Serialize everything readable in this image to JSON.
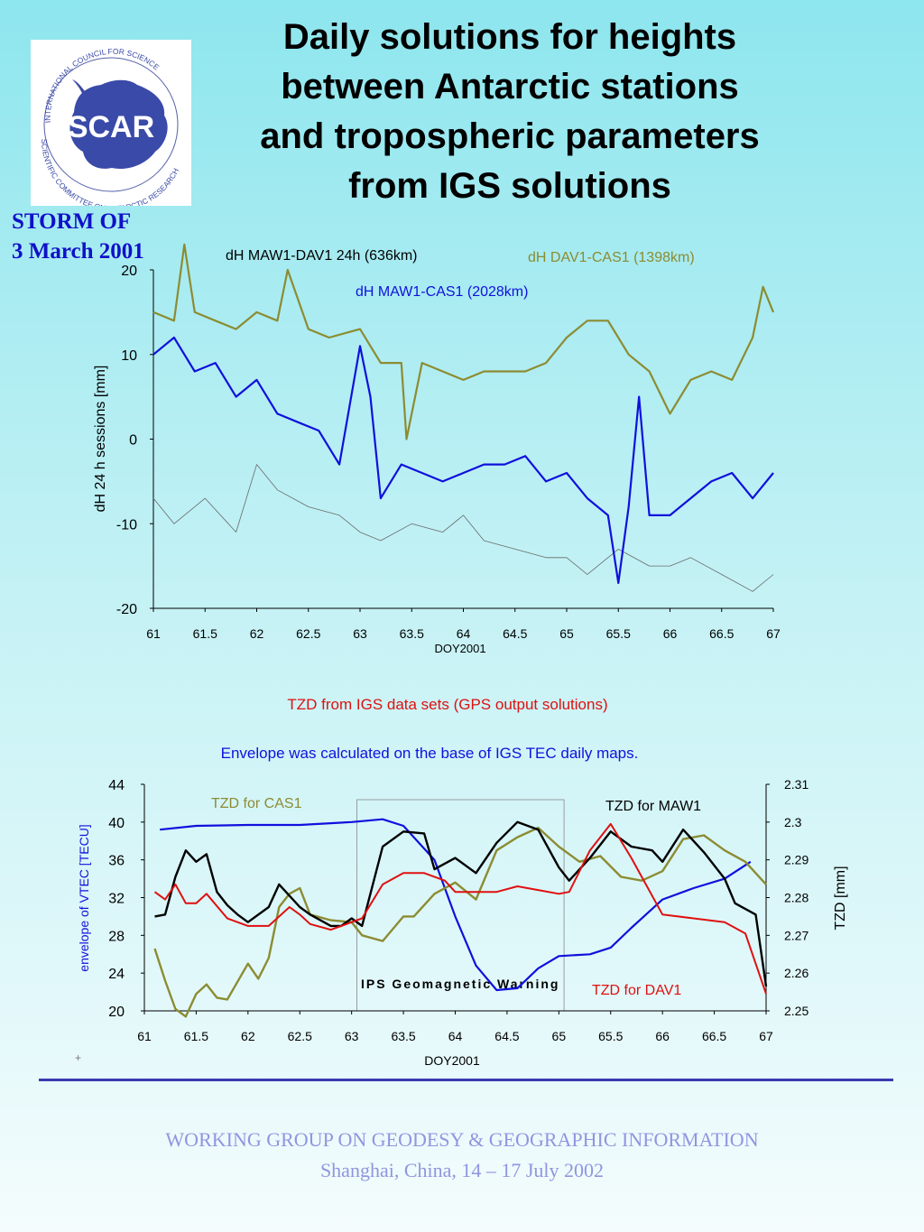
{
  "title_lines": [
    "Daily solutions for heights",
    "between Antarctic stations",
    "and tropospheric parameters",
    "from IGS solutions"
  ],
  "logo": {
    "name": "scar-logo-icon",
    "center_text": "SCAR",
    "ring_top": "INTERNATIONAL COUNCIL FOR SCIENCE",
    "ring_bottom": "SCIENTIFIC COMMITTEE ON ANTARCTIC RESEARCH"
  },
  "storm_lines": [
    "STORM  OF",
    "3 March 2001"
  ],
  "colors": {
    "maw_dav": "#6a6a6a",
    "maw_cas": "#1010dd",
    "dav_cas": "#8c8c32",
    "tzd_maw": "#000000",
    "tzd_dav": "#e01010",
    "envelope": "#1010dd",
    "red_text": "#e01010"
  },
  "chart_data": [
    {
      "type": "line",
      "title": "",
      "xlabel": "DOY2001",
      "ylabel": "dH 24 h sessions [mm]",
      "xlim": [
        61,
        67
      ],
      "ylim": [
        -20,
        20
      ],
      "xticks": [
        "61",
        "61.5",
        "62",
        "62.5",
        "63",
        "63.5",
        "64",
        "64.5",
        "65",
        "65.5",
        "66",
        "66.5",
        "67"
      ],
      "yticks": [
        "20",
        "10",
        "0",
        "-10",
        "-20"
      ],
      "series": [
        {
          "name": "dH MAW1-DAV1 24h (636km)",
          "x": [
            61.0,
            61.2,
            61.5,
            61.8,
            62.0,
            62.2,
            62.5,
            62.8,
            63.0,
            63.2,
            63.5,
            63.8,
            64.0,
            64.2,
            64.5,
            64.8,
            65.0,
            65.2,
            65.5,
            65.8,
            66.0,
            66.2,
            66.5,
            66.8,
            67.0
          ],
          "y": [
            -7,
            -10,
            -7,
            -11,
            -3,
            -6,
            -8,
            -9,
            -11,
            -12,
            -10,
            -11,
            -9,
            -12,
            -13,
            -14,
            -14,
            -16,
            -13,
            -15,
            -15,
            -14,
            -16,
            -18,
            -16
          ]
        },
        {
          "name": "dH MAW1-CAS1 (2028km)",
          "x": [
            61.0,
            61.2,
            61.4,
            61.6,
            61.8,
            62.0,
            62.2,
            62.4,
            62.6,
            62.8,
            63.0,
            63.1,
            63.2,
            63.4,
            63.6,
            63.8,
            64.0,
            64.2,
            64.4,
            64.6,
            64.8,
            65.0,
            65.2,
            65.4,
            65.5,
            65.6,
            65.7,
            65.8,
            66.0,
            66.2,
            66.4,
            66.6,
            66.8,
            67.0
          ],
          "y": [
            10,
            12,
            8,
            9,
            5,
            7,
            3,
            2,
            1,
            -3,
            11,
            5,
            -7,
            -3,
            -4,
            -5,
            -4,
            -3,
            -3,
            -2,
            -5,
            -4,
            -7,
            -9,
            -17,
            -8,
            5,
            -9,
            -9,
            -7,
            -5,
            -4,
            -7,
            -4
          ]
        },
        {
          "name": "dH DAV1-CAS1 (1398km)",
          "x": [
            61.0,
            61.2,
            61.3,
            61.4,
            61.6,
            61.8,
            62.0,
            62.2,
            62.3,
            62.5,
            62.7,
            63.0,
            63.2,
            63.4,
            63.45,
            63.6,
            63.8,
            64.0,
            64.2,
            64.4,
            64.6,
            64.8,
            65.0,
            65.2,
            65.4,
            65.6,
            65.8,
            66.0,
            66.2,
            66.4,
            66.6,
            66.8,
            66.9,
            67.0
          ],
          "y": [
            15,
            14,
            23,
            15,
            14,
            13,
            15,
            14,
            20,
            13,
            12,
            13,
            9,
            9,
            0,
            9,
            8,
            7,
            8,
            8,
            8,
            9,
            12,
            14,
            14,
            10,
            8,
            3,
            7,
            8,
            7,
            12,
            18,
            15
          ]
        }
      ]
    },
    {
      "type": "line",
      "title": "",
      "xlabel": "DOY2001",
      "ylabel": "envelope of VTEC [TECU]",
      "ylabel_right": "TZD [mm]",
      "xlim": [
        61,
        67
      ],
      "ylim": [
        20,
        44
      ],
      "ylim_right": [
        2.25,
        2.31
      ],
      "xticks": [
        "61",
        "61.5",
        "62",
        "62.5",
        "63",
        "63.5",
        "64",
        "64.5",
        "65",
        "65.5",
        "66",
        "66.5",
        "67"
      ],
      "yticks": [
        "44",
        "40",
        "36",
        "32",
        "28",
        "24",
        "20"
      ],
      "yticks_right": [
        "2.31",
        "2.3",
        "2.29",
        "2.28",
        "2.27",
        "2.26",
        "2.25"
      ],
      "annotation": "IPS Geomagnetic Warning",
      "series": [
        {
          "name": "Envelope (VTEC)",
          "axis": "left",
          "x": [
            61.15,
            61.5,
            62.0,
            62.5,
            63.0,
            63.3,
            63.5,
            63.8,
            64.0,
            64.2,
            64.4,
            64.6,
            64.8,
            65.0,
            65.3,
            65.5,
            65.7,
            66.0,
            66.3,
            66.6,
            66.85
          ],
          "y": [
            39.2,
            39.6,
            39.7,
            39.7,
            40.0,
            40.3,
            39.6,
            36.0,
            30.0,
            24.8,
            22.2,
            22.4,
            24.5,
            25.8,
            26.0,
            26.7,
            28.8,
            31.8,
            33.0,
            34.0,
            35.8
          ]
        },
        {
          "name": "TZD for CAS1",
          "axis": "right",
          "x": [
            61.1,
            61.2,
            61.3,
            61.4,
            61.5,
            61.6,
            61.7,
            61.8,
            62.0,
            62.1,
            62.2,
            62.3,
            62.4,
            62.5,
            62.6,
            62.8,
            63.0,
            63.1,
            63.3,
            63.5,
            63.6,
            63.8,
            64.0,
            64.2,
            64.4,
            64.6,
            64.8,
            65.0,
            65.2,
            65.4,
            65.6,
            65.8,
            66.0,
            66.2,
            66.4,
            66.6,
            66.8,
            67.0
          ],
          "y": [
            2.2665,
            2.258,
            2.2505,
            2.2485,
            2.2545,
            2.257,
            2.2535,
            2.253,
            2.2625,
            2.2585,
            2.264,
            2.2775,
            2.281,
            2.2825,
            2.2755,
            2.274,
            2.2735,
            2.27,
            2.2685,
            2.275,
            2.275,
            2.281,
            2.284,
            2.2795,
            2.2925,
            2.296,
            2.2985,
            2.2935,
            2.2895,
            2.291,
            2.2855,
            2.2845,
            2.287,
            2.2955,
            2.2965,
            2.2925,
            2.2895,
            2.2835
          ]
        },
        {
          "name": "TZD for MAW1",
          "axis": "right",
          "x": [
            61.1,
            61.2,
            61.3,
            61.4,
            61.5,
            61.6,
            61.7,
            61.8,
            61.9,
            62.0,
            62.2,
            62.3,
            62.5,
            62.6,
            62.8,
            62.9,
            63.0,
            63.1,
            63.3,
            63.5,
            63.7,
            63.8,
            64.0,
            64.2,
            64.4,
            64.6,
            64.8,
            65.0,
            65.1,
            65.3,
            65.5,
            65.7,
            65.9,
            66.0,
            66.2,
            66.4,
            66.6,
            66.7,
            66.9,
            67.0
          ],
          "y": [
            2.275,
            2.2755,
            2.2855,
            2.2925,
            2.2895,
            2.2915,
            2.2815,
            2.278,
            2.2755,
            2.2735,
            2.2775,
            2.2835,
            2.2775,
            2.2755,
            2.2725,
            2.2725,
            2.2745,
            2.2725,
            2.2935,
            2.2975,
            2.297,
            2.2875,
            2.2905,
            2.2865,
            2.2945,
            2.3,
            2.298,
            2.288,
            2.2845,
            2.2905,
            2.2975,
            2.2935,
            2.2925,
            2.2895,
            2.298,
            2.292,
            2.285,
            2.2785,
            2.2755,
            2.2565
          ]
        },
        {
          "name": "TZD for DAV1",
          "axis": "right",
          "x": [
            61.1,
            61.2,
            61.3,
            61.4,
            61.5,
            61.6,
            61.8,
            62.0,
            62.2,
            62.4,
            62.5,
            62.6,
            62.8,
            63.0,
            63.1,
            63.3,
            63.5,
            63.7,
            63.9,
            64.0,
            64.2,
            64.4,
            64.6,
            64.8,
            65.0,
            65.1,
            65.3,
            65.5,
            65.7,
            66.0,
            66.3,
            66.6,
            66.8,
            67.0
          ],
          "y": [
            2.2815,
            2.2795,
            2.2835,
            2.2785,
            2.2785,
            2.281,
            2.2745,
            2.2725,
            2.2725,
            2.2775,
            2.2755,
            2.273,
            2.2715,
            2.2735,
            2.2745,
            2.2835,
            2.2865,
            2.2865,
            2.2845,
            2.2815,
            2.2815,
            2.2815,
            2.283,
            2.282,
            2.281,
            2.2815,
            2.2925,
            2.2995,
            2.2905,
            2.2755,
            2.2745,
            2.2735,
            2.2705,
            2.2545
          ]
        }
      ]
    }
  ],
  "labels": {
    "top_legend_maw_dav": "dH MAW1-DAV1 24h (636km)",
    "top_legend_dav_cas": "dH DAV1-CAS1 (1398km)",
    "top_legend_maw_cas": "dH MAW1-CAS1 (2028km)",
    "tzd_caption": "TZD from IGS data sets (GPS output solutions)",
    "envelope_caption": "Envelope was calculated on the base of IGS TEC daily maps.",
    "tzd_cas": "TZD for CAS1",
    "tzd_maw": "TZD for MAW1",
    "tzd_dav": "TZD for DAV1",
    "plus_mark": "+"
  },
  "footer": {
    "line1": "WORKING GROUP ON GEODESY & GEOGRAPHIC INFORMATION",
    "line2": "Shanghai, China, 14 – 17 July 2002"
  }
}
